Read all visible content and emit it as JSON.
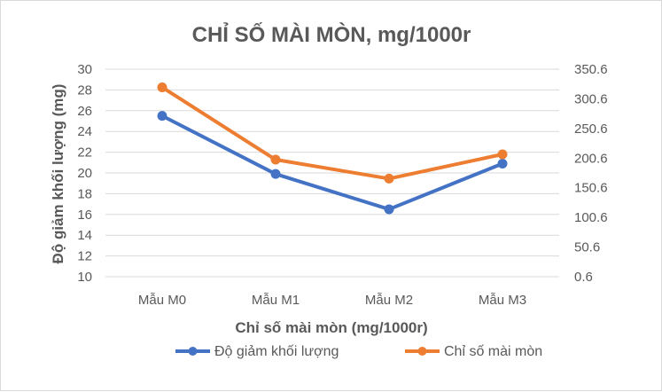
{
  "chart_data": {
    "type": "line",
    "title": "CHỈ SỐ MÀI MÒN, mg/1000r",
    "xlabel": "Chỉ số mài mòn (mg/1000r)",
    "ylabel": "Độ giảm khối lượng (mg)",
    "categories": [
      "Mẫu M0",
      "Mẫu M1",
      "Mẫu M2",
      "Mẫu M3"
    ],
    "ylim": [
      10,
      30
    ],
    "yticks": [
      "30",
      "28",
      "26",
      "24",
      "22",
      "20",
      "18",
      "16",
      "14",
      "12",
      "10"
    ],
    "y2lim": [
      0.6,
      350.6
    ],
    "y2ticks": [
      "350.6",
      "300.6",
      "250.6",
      "200.6",
      "150.6",
      "100.6",
      "50.6",
      "0.6"
    ],
    "grid": true,
    "legend_position": "bottom",
    "series": [
      {
        "name": "Độ giảm khối lượng",
        "axis": "left",
        "values": [
          25.5,
          19.9,
          16.5,
          20.9
        ],
        "color": "#4472C4"
      },
      {
        "name": "Chỉ số mài mòn",
        "axis": "right",
        "values": [
          320,
          198,
          166,
          207
        ],
        "color": "#ED7D31"
      }
    ]
  }
}
